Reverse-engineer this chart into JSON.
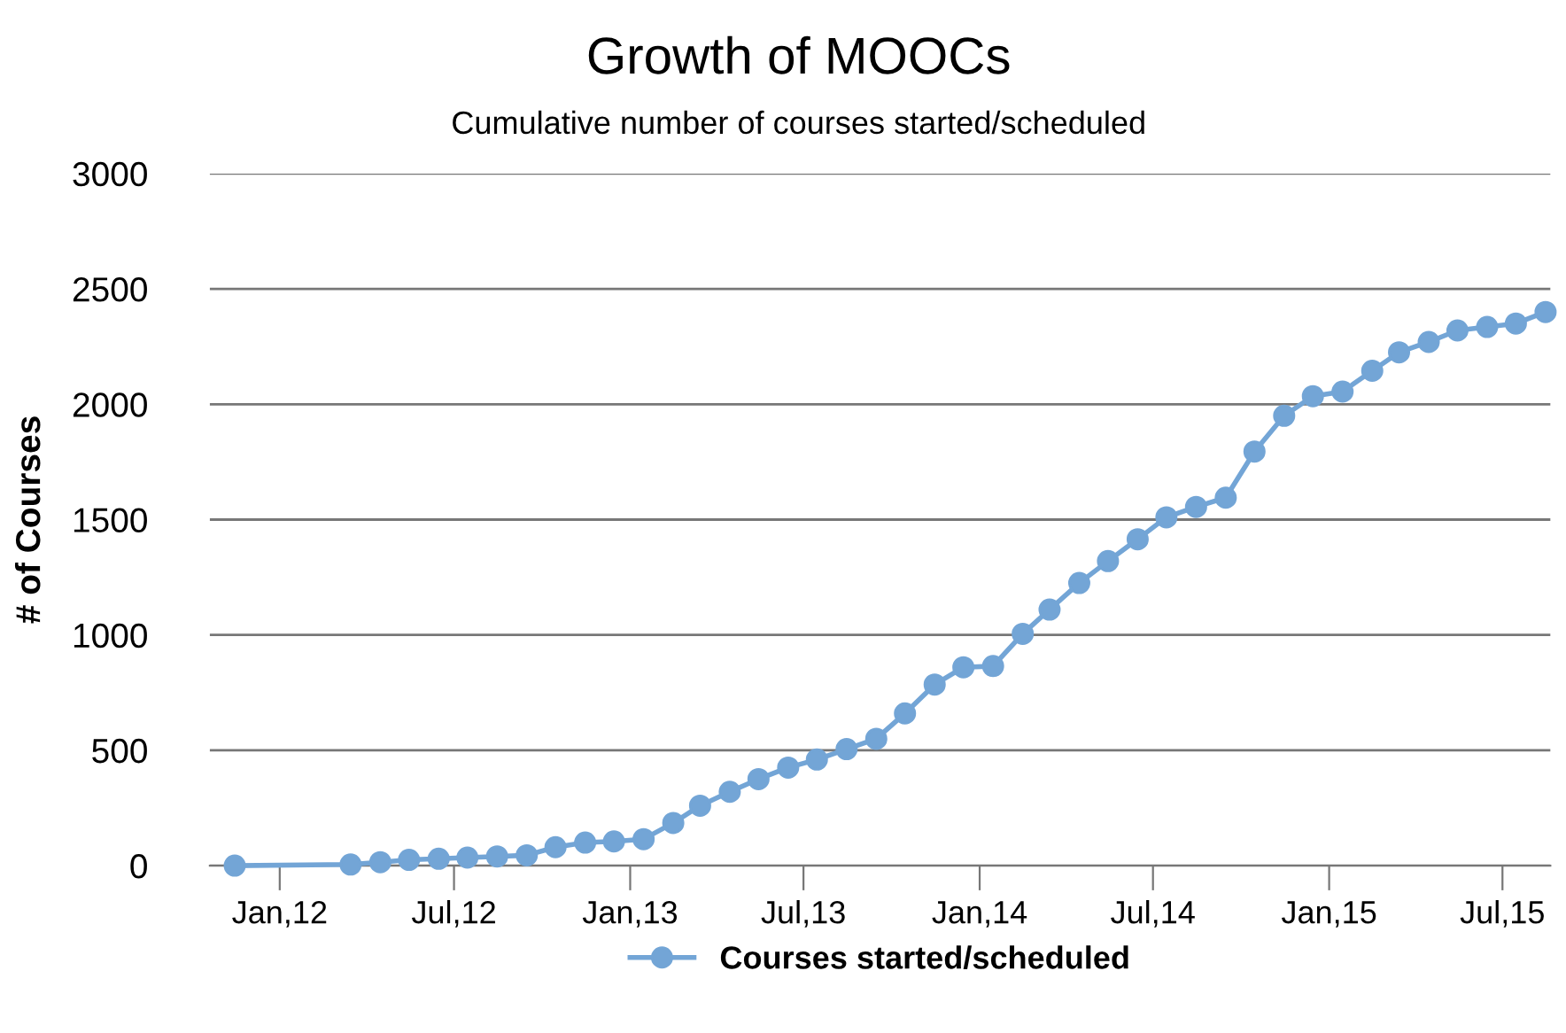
{
  "chart_data": {
    "type": "line",
    "title": "Growth of MOOCs",
    "subtitle": "Cumulative number of courses started/scheduled",
    "ylabel": "# of Courses",
    "x": [
      "2011-11-15",
      "2012-03-15",
      "2012-04-15",
      "2012-05-15",
      "2012-06-15",
      "2012-07-15",
      "2012-08-15",
      "2012-09-15",
      "2012-10-15",
      "2012-11-15",
      "2012-12-15",
      "2013-01-15",
      "2013-02-15",
      "2013-03-15",
      "2013-04-15",
      "2013-05-15",
      "2013-06-15",
      "2013-07-15",
      "2013-08-15",
      "2013-09-15",
      "2013-10-15",
      "2013-11-15",
      "2013-12-15",
      "2014-01-15",
      "2014-02-15",
      "2014-03-15",
      "2014-04-15",
      "2014-05-15",
      "2014-06-15",
      "2014-07-15",
      "2014-08-15",
      "2014-09-15",
      "2014-10-15",
      "2014-11-15",
      "2014-12-15",
      "2015-01-15",
      "2015-02-15",
      "2015-03-15",
      "2015-04-15",
      "2015-05-15",
      "2015-06-15",
      "2015-07-15",
      "2015-08-15"
    ],
    "series": [
      {
        "name": "Courses started/scheduled",
        "color": "#73a5d6",
        "values": [
          0,
          5,
          15,
          25,
          30,
          35,
          40,
          45,
          80,
          100,
          105,
          115,
          185,
          260,
          320,
          375,
          425,
          460,
          505,
          550,
          660,
          785,
          860,
          865,
          1005,
          1110,
          1225,
          1320,
          1415,
          1510,
          1555,
          1595,
          1795,
          1950,
          2035,
          2055,
          2145,
          2225,
          2270,
          2320,
          2335,
          2350,
          2400
        ]
      }
    ],
    "xlim": [
      "2011-10-20",
      "2015-08-20"
    ],
    "xticks": [
      {
        "value": "2012-01-01",
        "label": "Jan,12"
      },
      {
        "value": "2012-07-01",
        "label": "Jul,12"
      },
      {
        "value": "2013-01-01",
        "label": "Jan,13"
      },
      {
        "value": "2013-07-01",
        "label": "Jul,13"
      },
      {
        "value": "2014-01-01",
        "label": "Jan,14"
      },
      {
        "value": "2014-07-01",
        "label": "Jul,14"
      },
      {
        "value": "2015-01-01",
        "label": "Jan,15"
      },
      {
        "value": "2015-07-01",
        "label": "Jul,15"
      }
    ],
    "ylim": [
      0,
      3000
    ],
    "yticks": [
      0,
      500,
      1000,
      1500,
      2000,
      2500,
      3000
    ],
    "grid": "y",
    "legend": "bottom",
    "marker": "circle",
    "line_style": "solid"
  }
}
